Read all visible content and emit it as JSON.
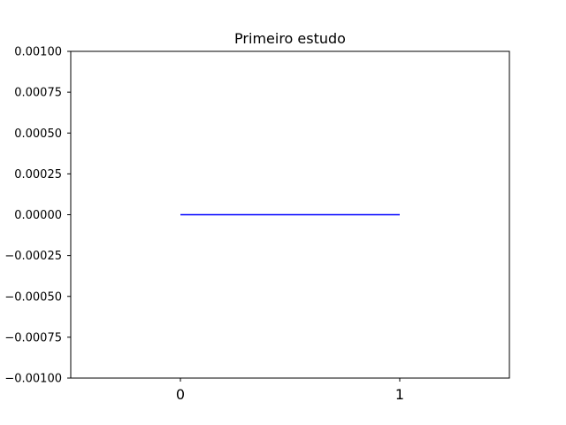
{
  "chart_data": {
    "type": "line",
    "title": "Primeiro estudo",
    "xlabel": "",
    "ylabel": "",
    "x": [
      0,
      1
    ],
    "series": [
      {
        "values": [
          0.0,
          0.0
        ],
        "color": "#0000ff"
      }
    ],
    "xlim": [
      -0.5,
      1.5
    ],
    "ylim": [
      -0.001,
      0.001
    ],
    "x_ticks": [
      0,
      1
    ],
    "x_tick_labels": [
      "0",
      "1"
    ],
    "y_ticks": [
      -0.001,
      -0.00075,
      -0.0005,
      -0.00025,
      0.0,
      0.00025,
      0.0005,
      0.00075,
      0.001
    ],
    "y_tick_labels": [
      "−0.00100",
      "−0.00075",
      "−0.00050",
      "−0.00025",
      "0.00000",
      "0.00025",
      "0.00050",
      "0.00075",
      "0.00100"
    ],
    "grid": false,
    "legend": "none"
  }
}
